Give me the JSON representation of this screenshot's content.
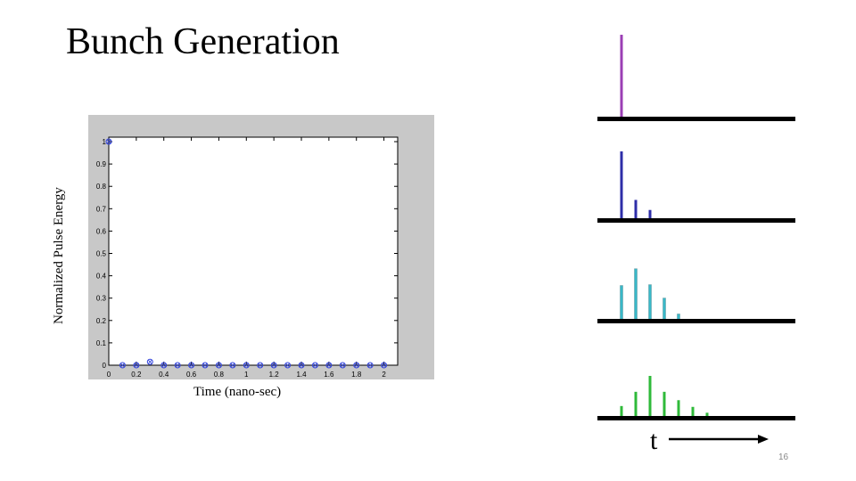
{
  "slide": {
    "title": "Bunch Generation",
    "number": "16"
  },
  "chart_data": {
    "type": "scatter",
    "title": "",
    "xlabel": "Time (nano-sec)",
    "ylabel": "Normalized Pulse Energy",
    "xlim": [
      0,
      2.1
    ],
    "ylim": [
      0,
      1.02
    ],
    "xticks": [
      0,
      0.2,
      0.4,
      0.6,
      0.8,
      1,
      1.2,
      1.4,
      1.6,
      1.8,
      2
    ],
    "xtick_labels": [
      "0",
      "0.2",
      "0.4",
      "0.6",
      "0.8",
      "1",
      "1.2",
      "1.4",
      "1.6",
      "1.8",
      "2"
    ],
    "yticks": [
      0,
      0.1,
      0.2,
      0.3,
      0.4,
      0.5,
      0.6,
      0.7,
      0.8,
      0.9,
      1
    ],
    "ytick_labels": [
      "0",
      "0.1",
      "0.2",
      "0.3",
      "0.4",
      "0.5",
      "0.6",
      "0.7",
      "0.8",
      "0.9",
      "1"
    ],
    "grid": false,
    "series": [
      {
        "color": "#3344dd",
        "x": [
          0,
          0.2,
          0.4,
          0.6,
          0.8,
          1.0,
          1.2,
          1.4,
          1.6,
          1.8,
          2.0
        ],
        "y": [
          1.0,
          0.0,
          0.0,
          0.0,
          0.0,
          0.0,
          0.0,
          0.0,
          0.0,
          0.0,
          0.0
        ]
      },
      {
        "color": "#3344dd",
        "x": [
          0.1,
          0.3,
          0.5,
          0.7,
          0.9,
          1.1,
          1.3,
          1.5,
          1.7,
          1.9
        ],
        "y": [
          0.0,
          0.015,
          0.0,
          0.0,
          0.0,
          0.0,
          0.0,
          0.0,
          0.0,
          0.0
        ]
      }
    ]
  },
  "pulse_diagram": {
    "time_label": "t",
    "rows": [
      {
        "color": "#9b3fb4",
        "pulses": [
          1.0
        ]
      },
      {
        "color": "#2e2ea8",
        "pulses": [
          0.82,
          0.24,
          0.12
        ]
      },
      {
        "color": "#38b8c8",
        "pulses": [
          0.42,
          0.62,
          0.43,
          0.27,
          0.08
        ]
      },
      {
        "color": "#2fba3a",
        "pulses": [
          0.14,
          0.31,
          0.5,
          0.31,
          0.21,
          0.13,
          0.06
        ]
      }
    ]
  }
}
